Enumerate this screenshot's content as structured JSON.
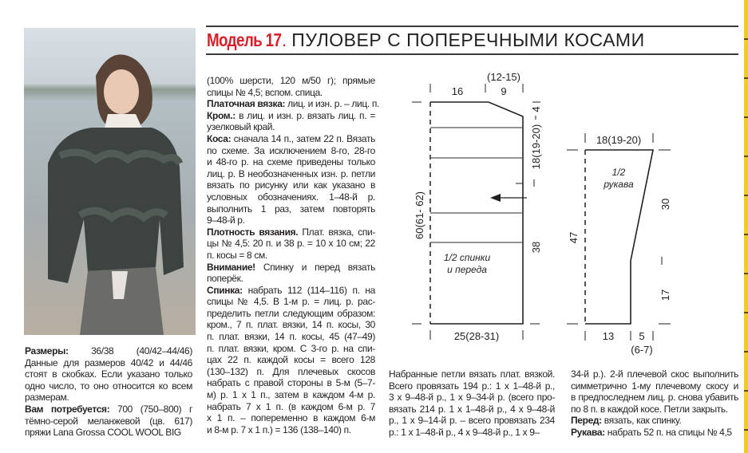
{
  "title": {
    "model": "Модель 17",
    "dot": ".",
    "name": " ПУЛОВЕР С ПОПЕРЕЧНЫМИ КОСАМИ"
  },
  "photo": {
    "alt": "woman wearing dark grey cable-knit pullover"
  },
  "col1": [
    {
      "label": "Размеры:",
      "lines": [
        " 36/38 (40/42–44/46)",
        "Данные для размеров 40/42 и 44/46",
        "стоят в скобках. Если указано только",
        "одно число, то оно относится ко всем",
        "размерам."
      ]
    },
    {
      "label": "Вам потребуется:",
      "lines": [
        " 700 (750–800) г",
        "тёмно-серой меланжевой (цв. 617)",
        "пряжи Lana Grossa COOL WOOL BIG"
      ]
    }
  ],
  "col2": [
    {
      "label": "",
      "lines": [
        "(100% шерсти, 120 м/50 г); прямые",
        "спицы № 4,5; вспом. спица."
      ]
    },
    {
      "label": "Платочная вязка:",
      "lines": [
        " лиц. и изн. р. – лиц. п."
      ]
    },
    {
      "label": "Кром.:",
      "lines": [
        " в лиц. и изн. р. вязать лиц. п. =",
        "узелковый край."
      ]
    },
    {
      "label": "Коса:",
      "lines": [
        " сначала 14 п., затем 22 п. Вязать",
        "по схеме. За исключением 8-го, 28-го",
        "и 48-го р. на схеме приведены только",
        "лиц. р. В необозначенных изн. р. петли",
        "вязать по рисунку или как указано в",
        "условных обозначениях. 1–48-й р.",
        "выполнить 1 раз, затем повторять",
        "9–48-й р."
      ]
    },
    {
      "label": "Плотность вязания.",
      "lines": [
        " Плат. вязка, спи-",
        "цы № 4,5: 20 п. и 38 р. = 10 х 10 см; 22",
        "п. косы = 8 см."
      ]
    },
    {
      "label": "Внимание!",
      "lines": [
        " Спинку и перед вязать",
        "поперёк."
      ]
    },
    {
      "label": "Спинка:",
      "lines": [
        " набрать 112 (114–116) п. на",
        "спицы № 4,5. В 1-м р. = лиц. р. рас-",
        "пределить петли следующим образом:",
        "кром., 7 п. плат. вязки, 14 п. косы, 30",
        "п. плат. вязки, 14 п. косы, 45 (47–49)",
        "п. плат. вязки, кром. С 3-го р. на спи-",
        "цах 22 п. каждой косы = всего 128",
        "(130–132) п. Для плечевых скосов",
        "набрать с правой стороны в 5-м (5–7-",
        "м) р. 1 х 1 п., затем в каждом 4-м р.",
        "набрать 7 х 1 п. (в каждом 6-м р. 7",
        "х 1 п. – попеременно в каждом 6-м",
        "и 8-м р. 7 х 1 п.) = 136 (138–140) п."
      ]
    }
  ],
  "col3": [
    {
      "label": "",
      "lines": [
        "Набранные петли вязать плат. вязкой.",
        "Всего провязать 194 р.: 1 х 1–48-й р.,",
        "3 х 9–48-й р., 1 х 9–34-й р. (всего про-",
        "вязать 214 р. 1 х 1–48-й р., 4 х 9–48-й",
        "р., 1 х 9–14-й р. – всего провязать 234",
        "р.: 1 х 1–48-й р., 4 х 9–48-й р., 1 х 9–"
      ]
    }
  ],
  "col4": [
    {
      "label": "",
      "lines": [
        "34-й р.). 2-й плечевой скос выполнить",
        "симметрично 1-му плечевому скосу и",
        "в предпоследнем лиц. р. снова убавить",
        "по 8 п. в каждой косе. Петли закрыть."
      ]
    },
    {
      "label": "Перед:",
      "lines": [
        " вязать, как спинку."
      ]
    },
    {
      "label": "Рукава:",
      "lines": [
        " набрать 52 п. на спицы № 4,5"
      ]
    }
  ],
  "body_diagram": {
    "top_left": "16",
    "top_right": "9",
    "top_right_alt": "(12-15)",
    "right_top": "4",
    "right_mid": "18(19-20)",
    "right_bottom": "38",
    "left": "60(61- 62)",
    "bottom": "25(28-31)",
    "label_line1": "1/2 спинки",
    "label_line2": "и переда"
  },
  "sleeve_diagram": {
    "top": "18(19-20)",
    "label_line1": "1/2",
    "label_line2": "рукава",
    "right_top": "30",
    "right_bottom": "17",
    "left": "47",
    "bottom_left": "13",
    "bottom_right": "5",
    "bottom_right_alt": "(6-7)"
  },
  "colors": {
    "accent_red": "#d7202a",
    "strip_yellow": "#f3cd1b",
    "text": "#231f20"
  }
}
